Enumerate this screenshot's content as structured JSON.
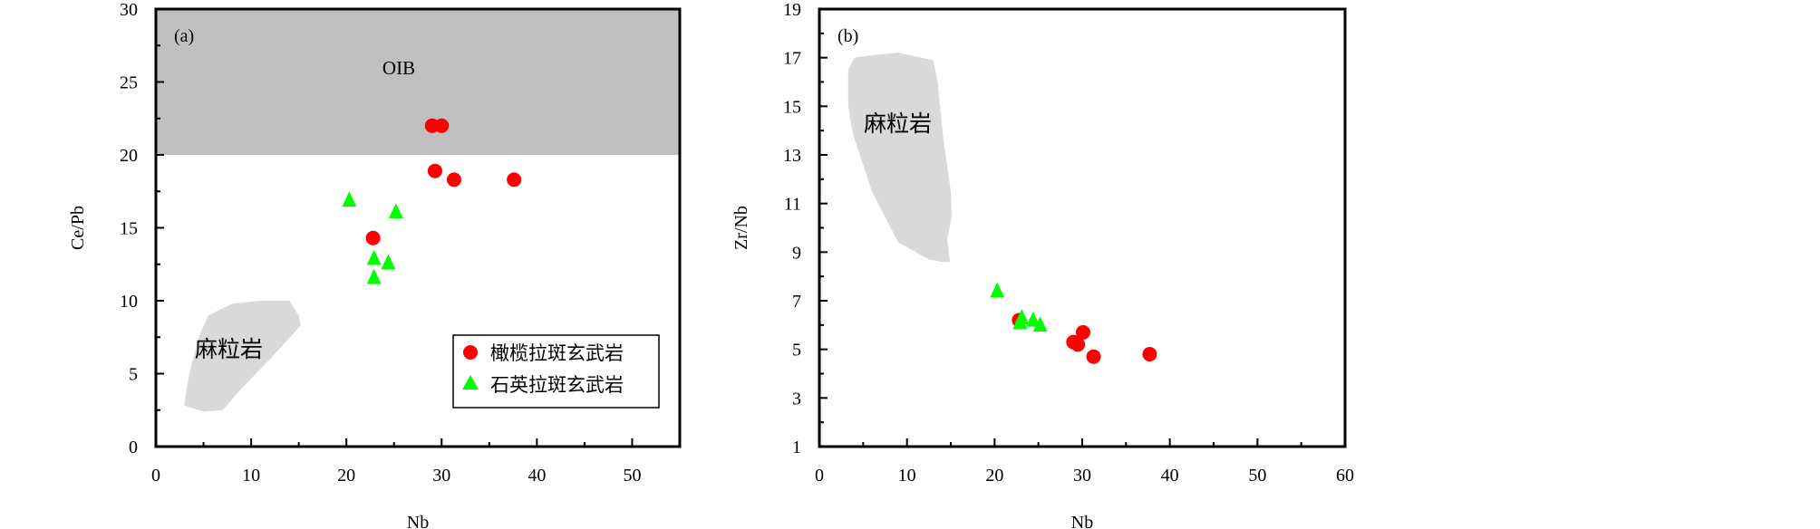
{
  "chart_data": [
    {
      "type": "scatter",
      "panel_label": "(a)",
      "xlabel": "Nb",
      "ylabel": "Ce/Pb",
      "xlim": [
        0,
        55
      ],
      "ylim": [
        0,
        30
      ],
      "xticks": [
        0,
        10,
        20,
        30,
        40,
        50
      ],
      "yticks": [
        0,
        5,
        10,
        15,
        20,
        25,
        30
      ],
      "grid": false,
      "legend": "bottom-right",
      "field_labels": {
        "oib": "OIB",
        "granulite": "麻粒岩"
      },
      "fields": [
        {
          "label": "OIB",
          "x": [
            0,
            55
          ],
          "y": [
            20,
            30
          ]
        },
        {
          "label": "麻粒岩",
          "polygon": [
            [
              3,
              3
            ],
            [
              3.5,
              5
            ],
            [
              4.5,
              7.5
            ],
            [
              5.5,
              9
            ],
            [
              8,
              9.8
            ],
            [
              11,
              10
            ],
            [
              14,
              10
            ],
            [
              15,
              9
            ],
            [
              15.2,
              8.3
            ],
            [
              12,
              6
            ],
            [
              9,
              4
            ],
            [
              7,
              2.5
            ],
            [
              5,
              2.4
            ],
            [
              3,
              2.8
            ]
          ]
        }
      ],
      "series": [
        {
          "name": "橄榄拉斑玄武岩",
          "marker": "circle",
          "color": "#ff0000",
          "x": [
            29.0,
            30.0,
            29.3,
            31.3,
            37.6,
            22.8
          ],
          "y": [
            22.0,
            22.0,
            18.9,
            18.3,
            18.3,
            14.3
          ]
        },
        {
          "name": "石英拉斑玄武岩",
          "marker": "triangle",
          "color": "#00ff00",
          "x": [
            20.3,
            25.2,
            22.9,
            24.4,
            22.9
          ],
          "y": [
            16.9,
            16.1,
            12.9,
            12.6,
            11.6
          ]
        }
      ]
    },
    {
      "type": "scatter",
      "panel_label": "(b)",
      "xlabel": "Nb",
      "ylabel": "Zr/Nb",
      "xlim": [
        0,
        60
      ],
      "ylim": [
        1,
        19
      ],
      "xticks": [
        0,
        10,
        20,
        30,
        40,
        50,
        60
      ],
      "yticks": [
        1,
        3,
        5,
        7,
        9,
        11,
        13,
        15,
        17,
        19
      ],
      "grid": false,
      "field_labels": {
        "granulite": "麻粒岩"
      },
      "fields": [
        {
          "label": "麻粒岩",
          "polygon": [
            [
              3.3,
              16.5
            ],
            [
              4,
              17
            ],
            [
              6,
              17.1
            ],
            [
              9,
              17.2
            ],
            [
              13,
              16.9
            ],
            [
              13.5,
              16
            ],
            [
              14.2,
              13.5
            ],
            [
              15,
              11.5
            ],
            [
              15.1,
              10.5
            ],
            [
              14.6,
              9.5
            ],
            [
              14.9,
              8.6
            ],
            [
              14,
              8.6
            ],
            [
              12.5,
              8.7
            ],
            [
              9,
              9.4
            ],
            [
              6,
              11.5
            ],
            [
              3.8,
              13.9
            ],
            [
              3.3,
              15
            ]
          ]
        }
      ],
      "series": [
        {
          "name": "橄榄拉斑玄武岩",
          "marker": "circle",
          "color": "#ff0000",
          "x": [
            22.8,
            29.0,
            29.5,
            30.1,
            31.3,
            37.7
          ],
          "y": [
            6.2,
            5.3,
            5.2,
            5.7,
            4.7,
            4.8
          ]
        },
        {
          "name": "石英拉斑玄武岩",
          "marker": "triangle",
          "color": "#00ff00",
          "x": [
            20.3,
            22.9,
            23.1,
            24.4,
            25.2
          ],
          "y": [
            7.4,
            6.1,
            6.3,
            6.2,
            6.0
          ]
        }
      ]
    }
  ],
  "colors": {
    "field_fill": "#bfbfbf",
    "granulite_fill": "#d9d9d9",
    "axis": "#000000"
  }
}
